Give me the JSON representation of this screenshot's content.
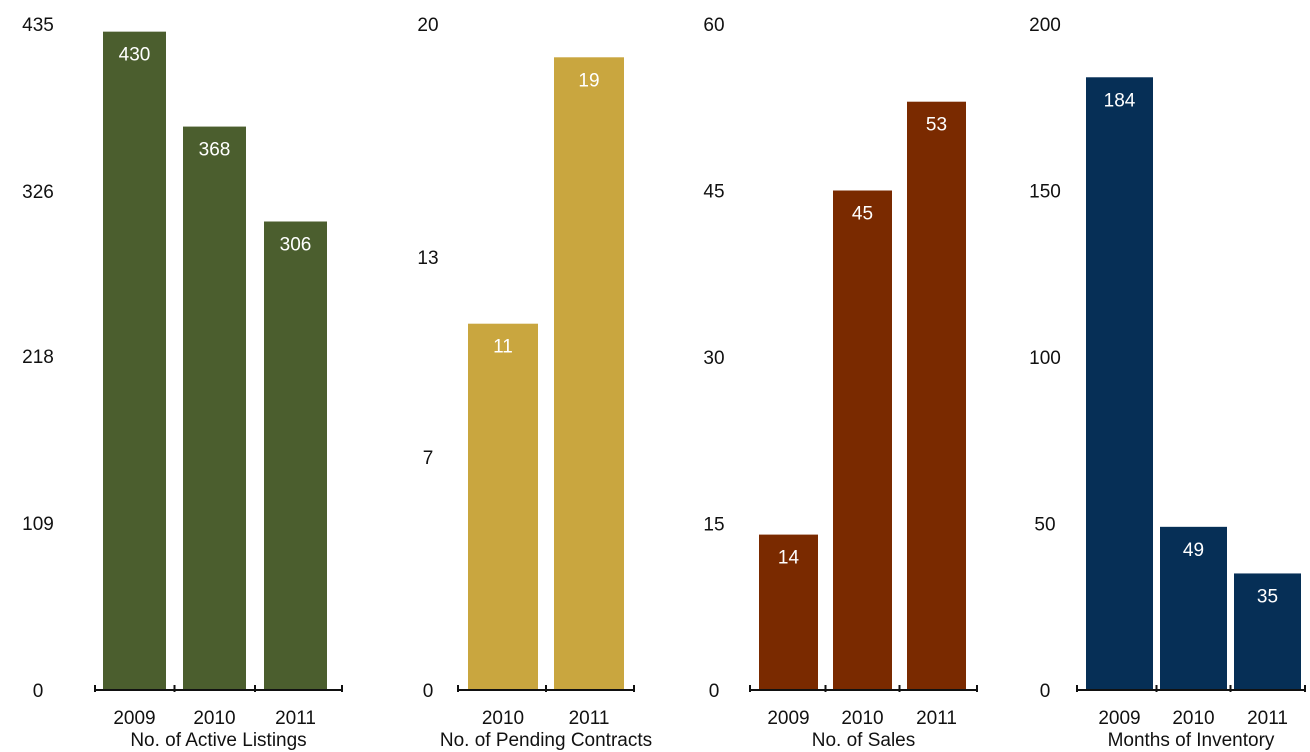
{
  "chart_data": [
    {
      "type": "bar",
      "title": "No. of Active Listings",
      "categories": [
        "2009",
        "2010",
        "2011"
      ],
      "values": [
        430,
        368,
        306
      ],
      "value_labels": [
        "430",
        "368",
        "306"
      ],
      "ylim": [
        0,
        435
      ],
      "yticks": [
        "0",
        "109",
        "218",
        "326",
        "435"
      ],
      "color": "#4b5e2e",
      "grid": false
    },
    {
      "type": "bar",
      "title": "No. of Pending Contracts",
      "categories": [
        "2010",
        "2011"
      ],
      "values": [
        11,
        19
      ],
      "value_labels": [
        "11",
        "19"
      ],
      "ylim": [
        0,
        20
      ],
      "yticks": [
        "0",
        "7",
        "13",
        "20"
      ],
      "color": "#c9a63f",
      "grid": false
    },
    {
      "type": "bar",
      "title": "No. of Sales",
      "categories": [
        "2009",
        "2010",
        "2011"
      ],
      "values": [
        14,
        45,
        53
      ],
      "value_labels": [
        "14",
        "45",
        "53"
      ],
      "ylim": [
        0,
        60
      ],
      "yticks": [
        "0",
        "15",
        "30",
        "45",
        "60"
      ],
      "color": "#7a2a00",
      "grid": false
    },
    {
      "type": "bar",
      "title": "Months of Inventory",
      "categories": [
        "2009",
        "2010",
        "2011"
      ],
      "values": [
        184,
        49,
        35
      ],
      "value_labels": [
        "184",
        "49",
        "35"
      ],
      "ylim": [
        0,
        200
      ],
      "yticks": [
        "0",
        "50",
        "100",
        "150",
        "200"
      ],
      "color": "#062f56",
      "grid": false
    }
  ]
}
